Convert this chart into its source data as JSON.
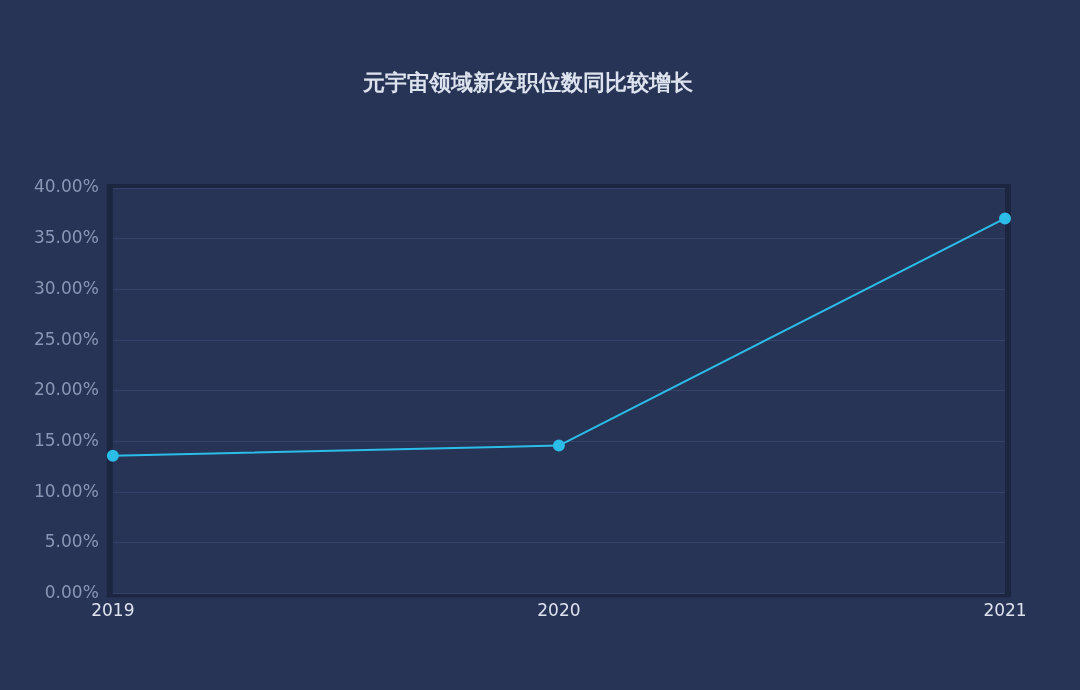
{
  "chart_data": {
    "type": "line",
    "title": "元宇宙领域新发职位数同比较增长",
    "categories": [
      "2019",
      "2020",
      "2021"
    ],
    "series": [
      {
        "color": "#2bbde8",
        "values": [
          13.6,
          14.6,
          37.0
        ]
      }
    ],
    "ylim": [
      0,
      40
    ],
    "yticks": [
      {
        "value": 0,
        "label": "0.00%"
      },
      {
        "value": 5,
        "label": "5.00%"
      },
      {
        "value": 10,
        "label": "10.00%"
      },
      {
        "value": 15,
        "label": "15.00%"
      },
      {
        "value": 20,
        "label": "20.00%"
      },
      {
        "value": 25,
        "label": "25.00%"
      },
      {
        "value": 30,
        "label": "30.00%"
      },
      {
        "value": 35,
        "label": "35.00%"
      },
      {
        "value": 40,
        "label": "40.00%"
      }
    ],
    "grid": "y",
    "legend": false,
    "marker": "circle",
    "line_style": "solid"
  }
}
